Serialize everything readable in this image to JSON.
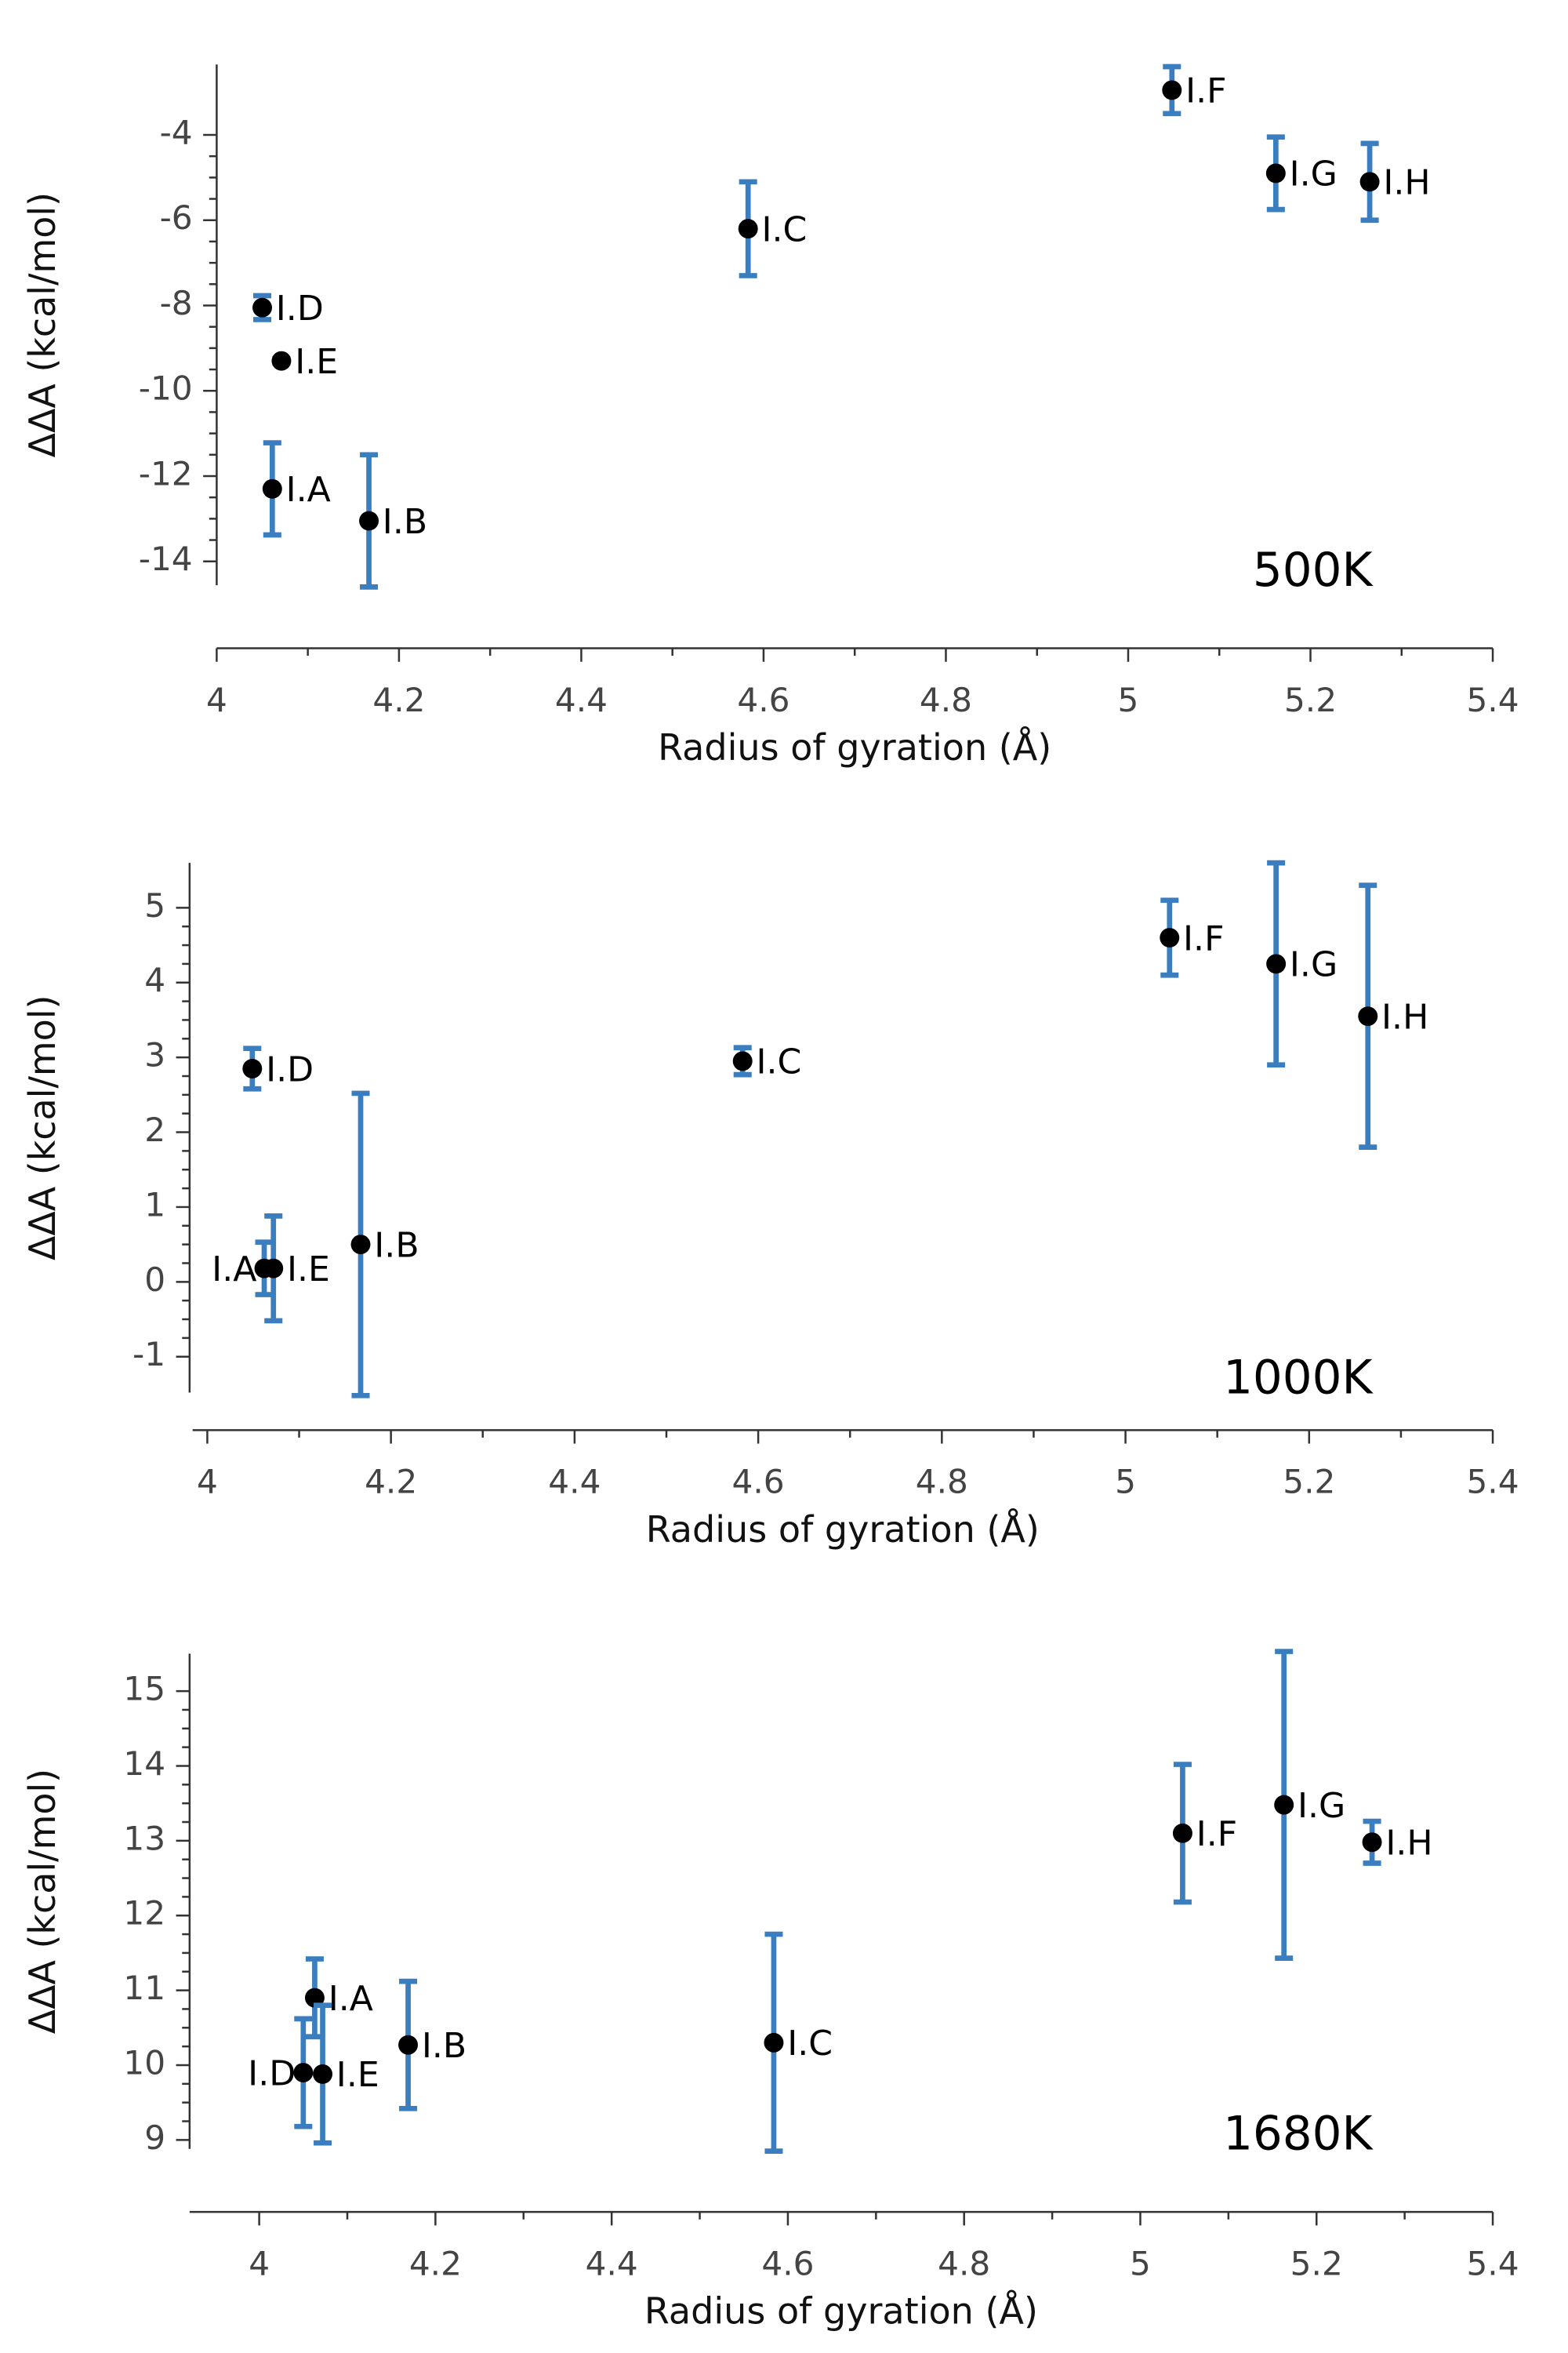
{
  "chart_data": [
    {
      "type": "scatter",
      "annotation": "500K",
      "xlabel": "Radius of gyration (Å)",
      "ylabel": "ΔΔA (kcal/mol)",
      "labels": [
        "I.A",
        "I.B",
        "I.C",
        "I.D",
        "I.E",
        "I.F",
        "I.G",
        "I.H"
      ],
      "x": [
        4.061,
        4.167,
        4.583,
        4.05,
        4.071,
        5.048,
        5.162,
        5.265
      ],
      "values": [
        -12.3,
        -13.05,
        -6.2,
        -8.05,
        -9.3,
        -2.95,
        -4.9,
        -5.1
      ],
      "errors": [
        1.08,
        1.55,
        1.1,
        0.28,
        0.05,
        0.55,
        0.85,
        0.9
      ],
      "marker_color": "#000000",
      "error_color": "#3a7ebf",
      "xlim": [
        4,
        5.4
      ],
      "xticks": [
        4,
        4.2,
        4.4,
        4.6,
        4.8,
        5,
        5.2,
        5.4
      ],
      "ylim": [
        -14.56,
        -2.35
      ],
      "yticks": [
        -14,
        -12,
        -10,
        -8,
        -6,
        -4
      ]
    },
    {
      "type": "scatter",
      "annotation": "1000K",
      "xlabel": "Radius of gyration (Å)",
      "ylabel": "ΔΔA (kcal/mol)",
      "labels": [
        "I.A",
        "I.B",
        "I.C",
        "I.D",
        "I.E",
        "I.F",
        "I.G",
        "I.H"
      ],
      "x": [
        4.062,
        4.167,
        4.583,
        4.049,
        4.072,
        5.048,
        5.164,
        5.264
      ],
      "values": [
        0.18,
        0.5,
        2.95,
        2.85,
        0.18,
        4.6,
        4.25,
        3.55
      ],
      "errors": [
        0.35,
        2.02,
        0.18,
        0.27,
        0.7,
        0.5,
        1.35,
        1.75
      ],
      "marker_color": "#000000",
      "error_color": "#3a7ebf",
      "xlim": [
        3.984,
        5.4
      ],
      "xticks": [
        4,
        4.2,
        4.4,
        4.6,
        4.8,
        5,
        5.2,
        5.4
      ],
      "ylim": [
        -1.48,
        5.6
      ],
      "yticks": [
        -1,
        0,
        1,
        2,
        3,
        4,
        5
      ]
    },
    {
      "type": "scatter",
      "annotation": "1680K",
      "xlabel": "Radius of gyration (Å)",
      "ylabel": "ΔΔA (kcal/mol)",
      "labels": [
        "I.A",
        "I.B",
        "I.C",
        "I.D",
        "I.E",
        "I.F",
        "I.G",
        "I.H"
      ],
      "x": [
        4.063,
        4.169,
        4.584,
        4.05,
        4.072,
        5.048,
        5.163,
        5.263
      ],
      "values": [
        10.9,
        10.27,
        10.3,
        9.9,
        9.88,
        13.1,
        13.48,
        12.98
      ],
      "errors": [
        0.52,
        0.85,
        1.45,
        0.72,
        0.92,
        0.92,
        2.05,
        0.28
      ],
      "marker_color": "#000000",
      "error_color": "#3a7ebf",
      "xlim": [
        3.921,
        5.4
      ],
      "xticks": [
        4,
        4.2,
        4.4,
        4.6,
        4.8,
        5,
        5.2,
        5.4
      ],
      "ylim": [
        8.88,
        15.5
      ],
      "yticks": [
        9,
        10,
        11,
        12,
        13,
        14,
        15
      ]
    }
  ]
}
